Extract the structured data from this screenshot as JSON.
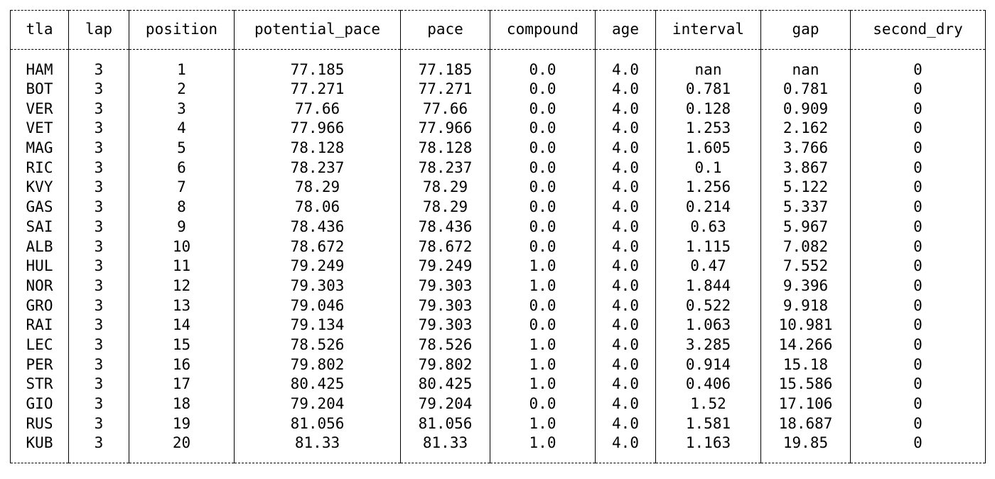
{
  "table": {
    "columns": [
      "tla",
      "lap",
      "position",
      "potential_pace",
      "pace",
      "compound",
      "age",
      "interval",
      "gap",
      "second_dry"
    ],
    "rows": [
      [
        "HAM",
        "3",
        "1",
        "77.185",
        "77.185",
        "0.0",
        "4.0",
        "nan",
        "nan",
        "0"
      ],
      [
        "BOT",
        "3",
        "2",
        "77.271",
        "77.271",
        "0.0",
        "4.0",
        "0.781",
        "0.781",
        "0"
      ],
      [
        "VER",
        "3",
        "3",
        "77.66",
        "77.66",
        "0.0",
        "4.0",
        "0.128",
        "0.909",
        "0"
      ],
      [
        "VET",
        "3",
        "4",
        "77.966",
        "77.966",
        "0.0",
        "4.0",
        "1.253",
        "2.162",
        "0"
      ],
      [
        "MAG",
        "3",
        "5",
        "78.128",
        "78.128",
        "0.0",
        "4.0",
        "1.605",
        "3.766",
        "0"
      ],
      [
        "RIC",
        "3",
        "6",
        "78.237",
        "78.237",
        "0.0",
        "4.0",
        "0.1",
        "3.867",
        "0"
      ],
      [
        "KVY",
        "3",
        "7",
        "78.29",
        "78.29",
        "0.0",
        "4.0",
        "1.256",
        "5.122",
        "0"
      ],
      [
        "GAS",
        "3",
        "8",
        "78.06",
        "78.29",
        "0.0",
        "4.0",
        "0.214",
        "5.337",
        "0"
      ],
      [
        "SAI",
        "3",
        "9",
        "78.436",
        "78.436",
        "0.0",
        "4.0",
        "0.63",
        "5.967",
        "0"
      ],
      [
        "ALB",
        "3",
        "10",
        "78.672",
        "78.672",
        "0.0",
        "4.0",
        "1.115",
        "7.082",
        "0"
      ],
      [
        "HUL",
        "3",
        "11",
        "79.249",
        "79.249",
        "1.0",
        "4.0",
        "0.47",
        "7.552",
        "0"
      ],
      [
        "NOR",
        "3",
        "12",
        "79.303",
        "79.303",
        "1.0",
        "4.0",
        "1.844",
        "9.396",
        "0"
      ],
      [
        "GRO",
        "3",
        "13",
        "79.046",
        "79.303",
        "0.0",
        "4.0",
        "0.522",
        "9.918",
        "0"
      ],
      [
        "RAI",
        "3",
        "14",
        "79.134",
        "79.303",
        "0.0",
        "4.0",
        "1.063",
        "10.981",
        "0"
      ],
      [
        "LEC",
        "3",
        "15",
        "78.526",
        "78.526",
        "1.0",
        "4.0",
        "3.285",
        "14.266",
        "0"
      ],
      [
        "PER",
        "3",
        "16",
        "79.802",
        "79.802",
        "1.0",
        "4.0",
        "0.914",
        "15.18",
        "0"
      ],
      [
        "STR",
        "3",
        "17",
        "80.425",
        "80.425",
        "1.0",
        "4.0",
        "0.406",
        "15.586",
        "0"
      ],
      [
        "GIO",
        "3",
        "18",
        "79.204",
        "79.204",
        "0.0",
        "4.0",
        "1.52",
        "17.106",
        "0"
      ],
      [
        "RUS",
        "3",
        "19",
        "81.056",
        "81.056",
        "1.0",
        "4.0",
        "1.581",
        "18.687",
        "0"
      ],
      [
        "KUB",
        "3",
        "20",
        "81.33",
        "81.33",
        "1.0",
        "4.0",
        "1.163",
        "19.85",
        "0"
      ]
    ]
  }
}
